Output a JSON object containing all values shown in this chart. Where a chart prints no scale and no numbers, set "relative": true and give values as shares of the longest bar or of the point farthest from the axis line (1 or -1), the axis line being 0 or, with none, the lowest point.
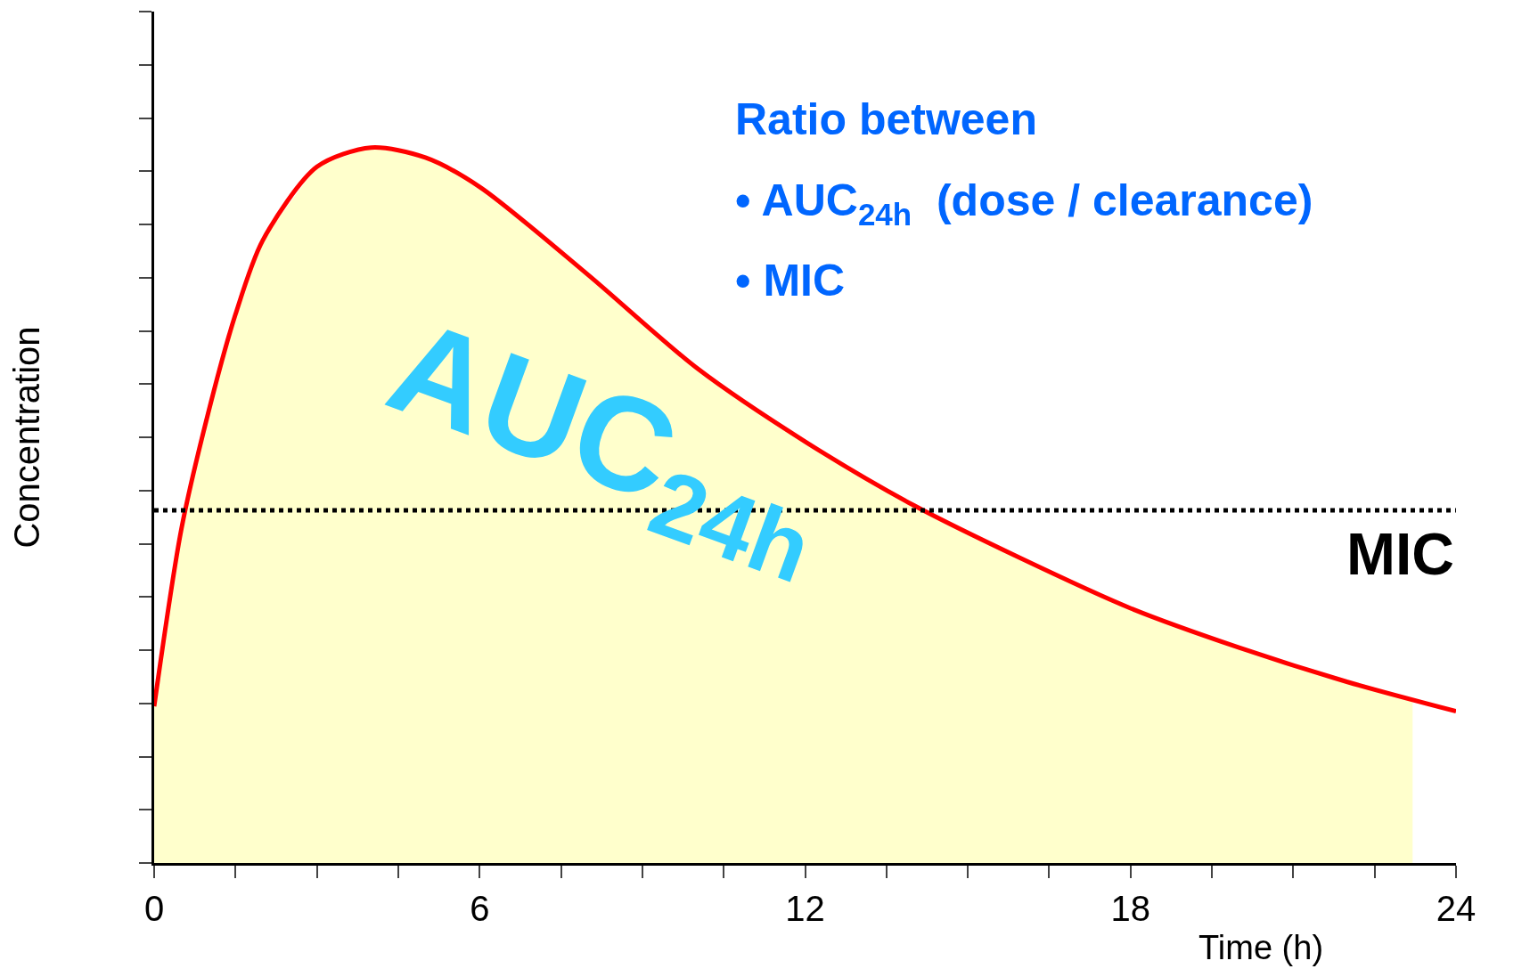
{
  "chart_data": {
    "type": "line",
    "relative": true,
    "xlabel": "Time (h)",
    "ylabel": "Concentration",
    "xlim": [
      0,
      24
    ],
    "xticks": [
      0,
      {
        "value": 1.5,
        "label": null
      },
      {
        "value": 3,
        "label": null
      },
      {
        "value": 4.5,
        "label": null
      },
      6,
      {
        "value": 7.5,
        "label": null
      },
      {
        "value": 9,
        "label": null
      },
      {
        "value": 10.5,
        "label": null
      },
      12,
      {
        "value": 13.5,
        "label": null
      },
      {
        "value": 15,
        "label": null
      },
      {
        "value": 16.5,
        "label": null
      },
      18,
      {
        "value": 19.5,
        "label": null
      },
      {
        "value": 21,
        "label": null
      },
      {
        "value": 22.5,
        "label": null
      },
      24
    ],
    "series": [
      {
        "type": "area",
        "color": "#ffffcc",
        "x": [
          0,
          0.5,
          1,
          1.5,
          2,
          3,
          4,
          5,
          6,
          8,
          10,
          12,
          14,
          16,
          18,
          20,
          22,
          23.2
        ],
        "values": [
          0.219,
          0.466,
          0.63,
          0.767,
          0.87,
          0.973,
          1.0,
          0.986,
          0.945,
          0.822,
          0.692,
          0.589,
          0.5,
          0.425,
          0.356,
          0.301,
          0.253,
          0.229
        ]
      },
      {
        "type": "line",
        "color": "#ff0000",
        "x": [
          0,
          0.5,
          1,
          1.5,
          2,
          3,
          4,
          5,
          6,
          8,
          10,
          12,
          14,
          16,
          18,
          20,
          22,
          24
        ],
        "values": [
          0.219,
          0.466,
          0.63,
          0.767,
          0.87,
          0.973,
          1.0,
          0.986,
          0.945,
          0.822,
          0.692,
          0.589,
          0.5,
          0.425,
          0.356,
          0.301,
          0.253,
          0.212
        ]
      }
    ],
    "ref_lines": [
      {
        "axis": "y",
        "value": 0.493,
        "label": "MIC",
        "color": "#000000",
        "line_style": "dotted"
      }
    ],
    "annotations": [
      "AUC$_{24h}$",
      "Ratio between",
      "• AUC$_{24h}$  (dose / clearance)",
      "• MIC"
    ],
    "grid": false
  }
}
